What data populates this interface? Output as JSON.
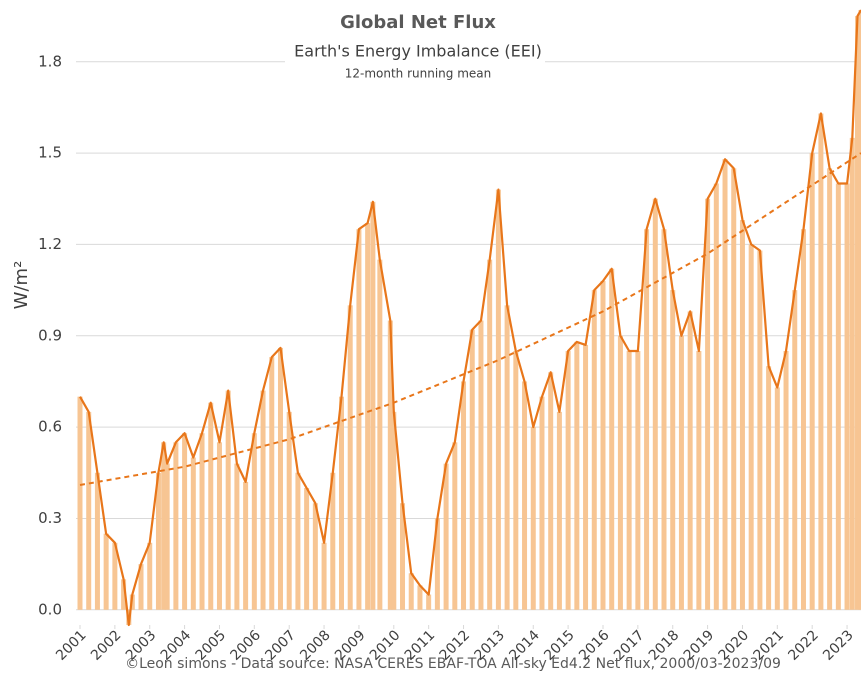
{
  "chart_data": {
    "type": "line",
    "title": "Global Net Flux",
    "subtitle": "Earth's Energy Imbalance (EEI)",
    "note": "12-month running mean",
    "y_label": "W/m²",
    "source": "©Leon simons - Data source: NASA CERES EBAF-TOA All-sky Ed4.2 Net flux, 2000/03-2023/09",
    "xlim": [
      2001,
      2023.4
    ],
    "xticks": [
      2001,
      2002,
      2003,
      2004,
      2005,
      2006,
      2007,
      2008,
      2009,
      2010,
      2011,
      2012,
      2013,
      2014,
      2015,
      2016,
      2017,
      2018,
      2019,
      2020,
      2021,
      2022,
      2023
    ],
    "ylim": [
      -0.05,
      1.97
    ],
    "yticks": [
      {
        "value": 0,
        "label": "0.0"
      },
      0.3,
      0.6,
      0.9,
      1.2,
      1.5,
      1.8
    ],
    "grid": true,
    "series": [
      {
        "color": "#e8761a",
        "bars": true,
        "bar_color": "#f7c593",
        "x": [
          2001.0,
          2001.25,
          2001.5,
          2001.75,
          2002.0,
          2002.25,
          2002.4,
          2002.5,
          2002.75,
          2003.0,
          2003.25,
          2003.4,
          2003.5,
          2003.75,
          2004.0,
          2004.25,
          2004.5,
          2004.75,
          2005.0,
          2005.25,
          2005.5,
          2005.75,
          2006.0,
          2006.25,
          2006.5,
          2006.75,
          2007.0,
          2007.25,
          2007.5,
          2007.75,
          2008.0,
          2008.25,
          2008.5,
          2008.75,
          2009.0,
          2009.25,
          2009.4,
          2009.6,
          2009.9,
          2010.0,
          2010.25,
          2010.5,
          2010.75,
          2011.0,
          2011.25,
          2011.5,
          2011.75,
          2012.0,
          2012.25,
          2012.5,
          2012.75,
          2013.0,
          2013.25,
          2013.5,
          2013.75,
          2014.0,
          2014.25,
          2014.5,
          2014.75,
          2015.0,
          2015.25,
          2015.5,
          2015.75,
          2016.0,
          2016.25,
          2016.5,
          2016.75,
          2017.0,
          2017.25,
          2017.5,
          2017.75,
          2018.0,
          2018.25,
          2018.5,
          2018.75,
          2019.0,
          2019.25,
          2019.5,
          2019.75,
          2020.0,
          2020.25,
          2020.5,
          2020.75,
          2021.0,
          2021.25,
          2021.5,
          2021.75,
          2022.0,
          2022.25,
          2022.5,
          2022.75,
          2023.0,
          2023.15,
          2023.3,
          2023.4
        ],
        "values": [
          0.7,
          0.65,
          0.45,
          0.25,
          0.22,
          0.1,
          -0.05,
          0.05,
          0.15,
          0.22,
          0.45,
          0.55,
          0.48,
          0.55,
          0.58,
          0.5,
          0.58,
          0.68,
          0.55,
          0.72,
          0.48,
          0.42,
          0.58,
          0.72,
          0.83,
          0.86,
          0.65,
          0.45,
          0.4,
          0.35,
          0.22,
          0.45,
          0.7,
          1.0,
          1.25,
          1.27,
          1.34,
          1.15,
          0.95,
          0.65,
          0.35,
          0.12,
          0.08,
          0.05,
          0.3,
          0.48,
          0.55,
          0.75,
          0.92,
          0.95,
          1.15,
          1.38,
          1.0,
          0.85,
          0.75,
          0.6,
          0.7,
          0.78,
          0.65,
          0.85,
          0.88,
          0.87,
          1.05,
          1.08,
          1.12,
          0.9,
          0.85,
          0.85,
          1.25,
          1.35,
          1.25,
          1.05,
          0.9,
          0.98,
          0.85,
          1.35,
          1.4,
          1.48,
          1.45,
          1.28,
          1.2,
          1.18,
          0.8,
          0.73,
          0.85,
          1.05,
          1.25,
          1.5,
          1.63,
          1.45,
          1.4,
          1.4,
          1.55,
          1.95,
          1.97
        ]
      },
      {
        "color": "#e8761a",
        "dash": true,
        "x": [
          2001,
          2004,
          2007,
          2010,
          2013,
          2016,
          2019,
          2021,
          2023.4
        ],
        "values": [
          0.41,
          0.47,
          0.56,
          0.68,
          0.82,
          0.98,
          1.17,
          1.32,
          1.5
        ]
      }
    ]
  }
}
